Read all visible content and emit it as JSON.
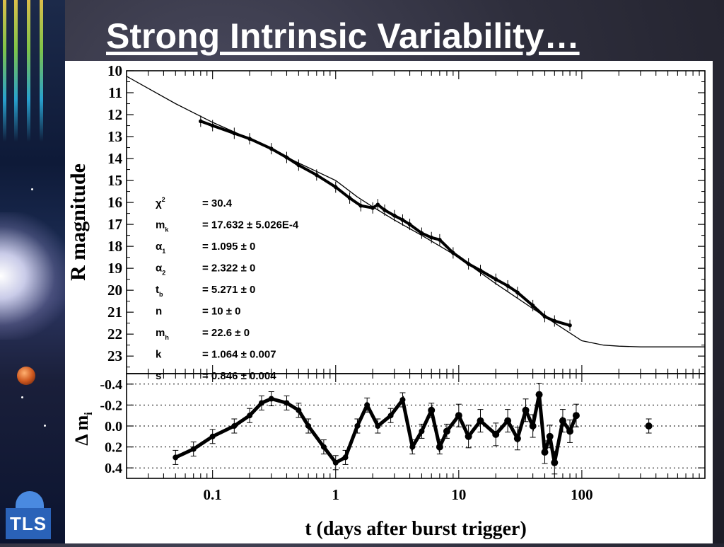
{
  "slide": {
    "title": "Strong Intrinsic Variability…",
    "logo_text": "TLS"
  },
  "chart_data": [
    {
      "type": "line",
      "ylabel": "R magnitude",
      "x_scale": "log",
      "xlim": [
        0.02,
        1000
      ],
      "ylim": [
        23.8,
        10
      ],
      "y_inverted": true,
      "yticks": [
        10,
        11,
        12,
        13,
        14,
        15,
        16,
        17,
        18,
        19,
        20,
        21,
        22,
        23
      ],
      "series": [
        {
          "role": "model fit",
          "x": [
            0.02,
            0.05,
            0.1,
            0.2,
            0.5,
            1,
            1.5,
            2,
            3,
            5,
            10,
            20,
            50,
            100,
            150,
            200,
            300,
            1000
          ],
          "y": [
            10.25,
            11.5,
            12.35,
            13.1,
            14.2,
            15.0,
            15.75,
            16.2,
            16.8,
            17.5,
            18.5,
            19.7,
            21.2,
            22.3,
            22.5,
            22.55,
            22.58,
            22.58
          ]
        },
        {
          "role": "observations",
          "x": [
            0.08,
            0.1,
            0.15,
            0.2,
            0.3,
            0.4,
            0.5,
            0.7,
            1.0,
            1.3,
            1.6,
            2.0,
            2.2,
            2.5,
            3.0,
            3.5,
            4.0,
            5.0,
            6.0,
            7.0,
            9.0,
            12.0,
            15.0,
            20.0,
            25.0,
            30.0,
            40.0,
            50.0,
            60.0,
            80.0
          ],
          "y": [
            12.3,
            12.5,
            12.85,
            13.1,
            13.55,
            13.95,
            14.3,
            14.75,
            15.3,
            15.8,
            16.15,
            16.25,
            16.1,
            16.35,
            16.6,
            16.8,
            17.0,
            17.4,
            17.6,
            17.7,
            18.3,
            18.8,
            19.1,
            19.5,
            19.8,
            20.1,
            20.7,
            21.2,
            21.4,
            21.6
          ]
        }
      ],
      "fit_parameters": [
        {
          "name": "χ",
          "sup": "2",
          "sub": "",
          "value": "= 30.4"
        },
        {
          "name": "m",
          "sup": "",
          "sub": "k",
          "value": "= 17.632 ± 5.026E-4"
        },
        {
          "name": "α",
          "sup": "",
          "sub": "1",
          "value": "= 1.095 ± 0"
        },
        {
          "name": "α",
          "sup": "",
          "sub": "2",
          "value": "= 2.322 ± 0"
        },
        {
          "name": "t",
          "sup": "",
          "sub": "b",
          "value": "= 5.271 ± 0"
        },
        {
          "name": "n",
          "sup": "",
          "sub": "",
          "value": "= 10 ± 0"
        },
        {
          "name": "m",
          "sup": "",
          "sub": "h",
          "value": "= 22.6 ± 0"
        },
        {
          "name": "k",
          "sup": "",
          "sub": "",
          "value": "= 1.064 ± 0.007"
        },
        {
          "name": "s",
          "sup": "",
          "sub": "",
          "value": "= 0.846 ± 0.004"
        }
      ]
    },
    {
      "type": "scatter",
      "ylabel_main": "Δ m",
      "ylabel_sub": "i",
      "xlabel": "t (days after burst trigger)",
      "x_scale": "log",
      "xlim": [
        0.02,
        1000
      ],
      "ylim": [
        0.5,
        -0.5
      ],
      "y_inverted": true,
      "yticks": [
        -0.4,
        -0.2,
        0.0,
        0.2,
        0.4
      ],
      "ytick_labels": [
        "-0.4",
        "-0.2",
        "0.0",
        "0.2",
        "0.4"
      ],
      "xticks": [
        0.1,
        1,
        10,
        100
      ],
      "xtick_labels": [
        "0.1",
        "1",
        "10",
        "100"
      ],
      "grid": "dotted horizontal at y ticks",
      "series": [
        {
          "role": "residuals",
          "x": [
            0.05,
            0.07,
            0.1,
            0.15,
            0.2,
            0.25,
            0.3,
            0.4,
            0.5,
            0.6,
            0.8,
            1.0,
            1.2,
            1.5,
            1.8,
            2.2,
            2.8,
            3.5,
            4.2,
            5.0,
            6.0,
            7.0,
            8.0,
            10.0,
            12.0,
            15.0,
            20.0,
            25.0,
            30.0,
            35.0,
            40.0,
            45.0,
            50.0,
            55.0,
            60.0,
            70.0,
            80.0,
            90.0,
            350.0
          ],
          "y": [
            0.3,
            0.22,
            0.1,
            0.0,
            -0.1,
            -0.22,
            -0.26,
            -0.22,
            -0.15,
            0.0,
            0.2,
            0.35,
            0.3,
            0.0,
            -0.2,
            0.0,
            -0.1,
            -0.25,
            0.2,
            0.05,
            -0.15,
            0.2,
            0.05,
            -0.1,
            0.1,
            -0.05,
            0.08,
            -0.05,
            0.12,
            -0.15,
            0.0,
            -0.3,
            0.25,
            0.1,
            0.35,
            -0.05,
            0.05,
            -0.1,
            0.0
          ]
        }
      ]
    }
  ]
}
